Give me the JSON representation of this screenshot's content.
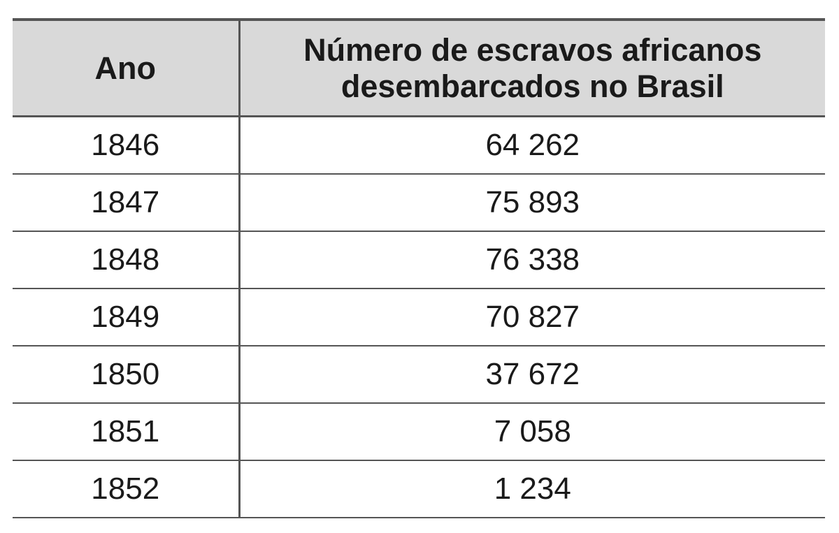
{
  "table": {
    "header": [
      "Ano",
      [
        "Número de escravos africanos",
        "desembarcados no Brasil"
      ]
    ],
    "rows": [
      [
        "1846",
        "64 262"
      ],
      [
        "1847",
        "75 893"
      ],
      [
        "1848",
        "76 338"
      ],
      [
        "1849",
        "70 827"
      ],
      [
        "1850",
        "37 672"
      ],
      [
        "1851",
        "7 058"
      ],
      [
        "1852",
        "1 234"
      ]
    ]
  }
}
